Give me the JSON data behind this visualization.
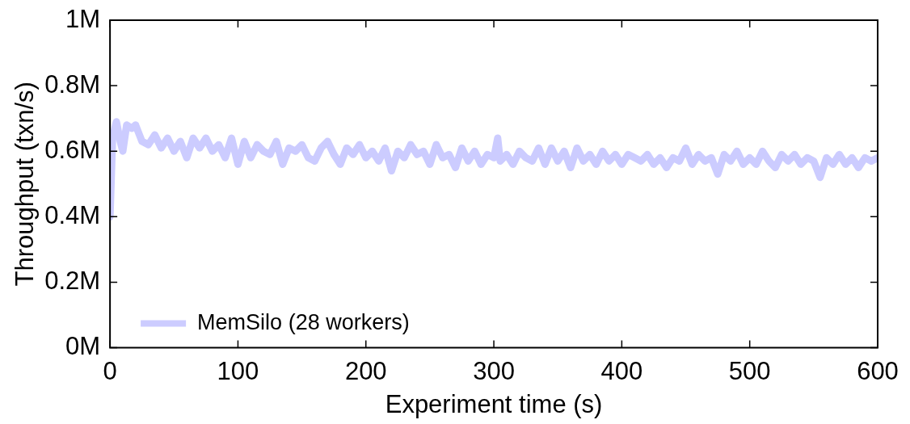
{
  "chart_data": {
    "type": "line",
    "xlabel": "Experiment time (s)",
    "ylabel": "Throughput (txn/s)",
    "xlim": [
      0,
      600
    ],
    "xticks": [
      0,
      100,
      200,
      300,
      400,
      500,
      600
    ],
    "ylim": [
      0,
      1
    ],
    "yticks": [
      {
        "value": 0,
        "label": "0M"
      },
      {
        "value": 0.2,
        "label": "0.2M"
      },
      {
        "value": 0.4,
        "label": "0.4M"
      },
      {
        "value": 0.6,
        "label": "0.6M"
      },
      {
        "value": 0.8,
        "label": "0.8M"
      },
      {
        "value": 1,
        "label": "1M"
      }
    ],
    "grid": false,
    "legend": "bottom left",
    "marker": "none",
    "line_style": "solid",
    "x": [
      0,
      2,
      5,
      8,
      10,
      13,
      17,
      20,
      25,
      30,
      35,
      40,
      45,
      50,
      55,
      60,
      65,
      70,
      75,
      80,
      85,
      90,
      95,
      100,
      105,
      110,
      115,
      120,
      125,
      130,
      135,
      140,
      145,
      150,
      155,
      160,
      165,
      170,
      175,
      180,
      185,
      190,
      195,
      200,
      205,
      210,
      215,
      220,
      225,
      230,
      235,
      240,
      245,
      250,
      255,
      260,
      265,
      270,
      275,
      280,
      285,
      290,
      295,
      300,
      303,
      305,
      310,
      315,
      320,
      325,
      330,
      335,
      340,
      345,
      350,
      355,
      360,
      365,
      370,
      375,
      380,
      385,
      390,
      395,
      400,
      405,
      410,
      415,
      420,
      425,
      430,
      435,
      440,
      445,
      450,
      455,
      460,
      465,
      470,
      475,
      480,
      485,
      490,
      495,
      500,
      505,
      510,
      515,
      520,
      525,
      530,
      535,
      540,
      545,
      550,
      555,
      560,
      565,
      570,
      575,
      580,
      585,
      590,
      595,
      600
    ],
    "series": [
      {
        "name": "MemSilo (28 workers)",
        "color": "#ccccff",
        "values": [
          0.4,
          0.64,
          0.69,
          0.63,
          0.6,
          0.68,
          0.67,
          0.68,
          0.63,
          0.62,
          0.65,
          0.61,
          0.64,
          0.6,
          0.63,
          0.58,
          0.64,
          0.61,
          0.64,
          0.6,
          0.62,
          0.58,
          0.64,
          0.56,
          0.63,
          0.58,
          0.62,
          0.6,
          0.59,
          0.63,
          0.56,
          0.61,
          0.6,
          0.62,
          0.58,
          0.57,
          0.61,
          0.63,
          0.59,
          0.56,
          0.61,
          0.59,
          0.62,
          0.58,
          0.6,
          0.57,
          0.61,
          0.54,
          0.6,
          0.58,
          0.62,
          0.59,
          0.6,
          0.56,
          0.62,
          0.58,
          0.59,
          0.55,
          0.61,
          0.57,
          0.6,
          0.56,
          0.59,
          0.58,
          0.64,
          0.57,
          0.59,
          0.56,
          0.6,
          0.58,
          0.57,
          0.61,
          0.56,
          0.61,
          0.57,
          0.6,
          0.55,
          0.61,
          0.57,
          0.59,
          0.56,
          0.6,
          0.57,
          0.59,
          0.56,
          0.59,
          0.58,
          0.57,
          0.59,
          0.56,
          0.58,
          0.55,
          0.58,
          0.57,
          0.61,
          0.56,
          0.59,
          0.57,
          0.58,
          0.53,
          0.59,
          0.57,
          0.6,
          0.56,
          0.58,
          0.56,
          0.6,
          0.57,
          0.55,
          0.59,
          0.57,
          0.59,
          0.56,
          0.58,
          0.57,
          0.52,
          0.58,
          0.56,
          0.59,
          0.56,
          0.58,
          0.55,
          0.58,
          0.57,
          0.58
        ]
      }
    ]
  }
}
